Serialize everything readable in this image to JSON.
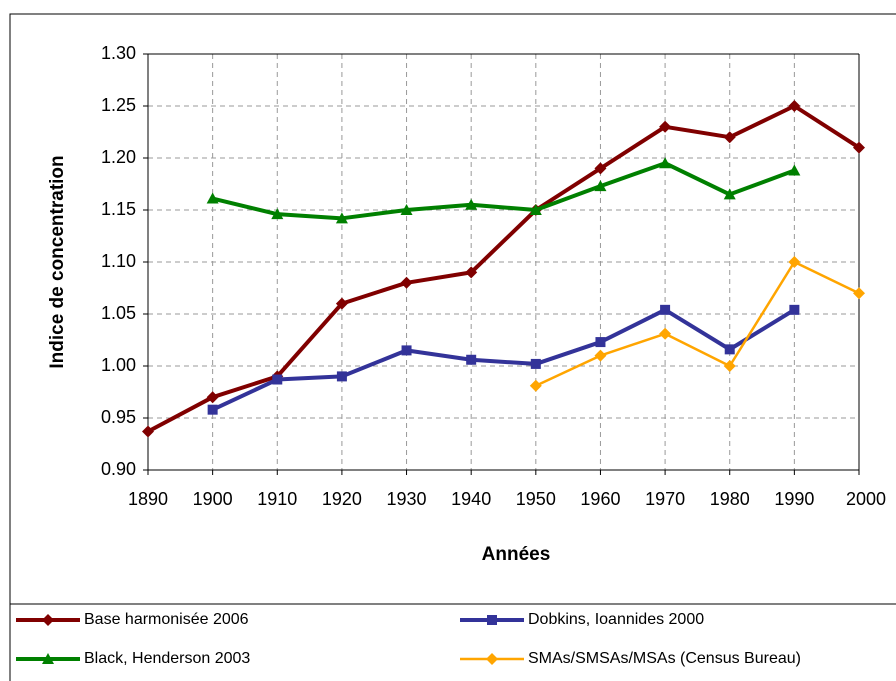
{
  "chart_data": {
    "type": "line",
    "x_label": "Années",
    "y_label": "Indice de concentration",
    "x": [
      1890,
      1900,
      1910,
      1920,
      1930,
      1940,
      1950,
      1960,
      1970,
      1980,
      1990,
      2000
    ],
    "xlim": [
      1890,
      2000
    ],
    "xticks": [
      1890,
      1900,
      1910,
      1920,
      1930,
      1940,
      1950,
      1960,
      1970,
      1980,
      1990,
      2000
    ],
    "ylim": [
      0.9,
      1.3
    ],
    "yticks": [
      {
        "value": 0.9,
        "label": "0.90"
      },
      0.95,
      {
        "value": 1.0,
        "label": "1.00"
      },
      1.05,
      {
        "value": 1.1,
        "label": "1.10"
      },
      1.15,
      {
        "value": 1.2,
        "label": "1.20"
      },
      1.25,
      {
        "value": 1.3,
        "label": "1.30"
      }
    ],
    "grid": true,
    "legend": "bottom",
    "series": [
      {
        "name": "Base harmonisée 2006",
        "color": "#800000",
        "marker": "diamond",
        "values": [
          0.937,
          0.97,
          0.99,
          1.06,
          1.08,
          1.09,
          1.15,
          1.19,
          1.23,
          1.22,
          1.25,
          1.21
        ]
      },
      {
        "name": "Dobkins, Ioannides 2000",
        "color": "#333399",
        "marker": "square",
        "values": [
          null,
          0.958,
          0.987,
          0.99,
          1.015,
          1.006,
          1.002,
          1.023,
          1.054,
          1.016,
          1.054,
          null
        ]
      },
      {
        "name": "Black, Henderson 2003",
        "color": "#008000",
        "marker": "triangle",
        "values": [
          null,
          1.161,
          1.146,
          1.142,
          1.15,
          1.155,
          1.15,
          1.173,
          1.195,
          1.165,
          1.188,
          null
        ]
      },
      {
        "name": "SMAs/SMSAs/MSAs (Census Bureau)",
        "color": "#FFA500",
        "marker": "diamond",
        "values": [
          null,
          null,
          null,
          null,
          null,
          null,
          0.981,
          1.01,
          1.031,
          1.0,
          1.1,
          1.07
        ]
      }
    ]
  }
}
